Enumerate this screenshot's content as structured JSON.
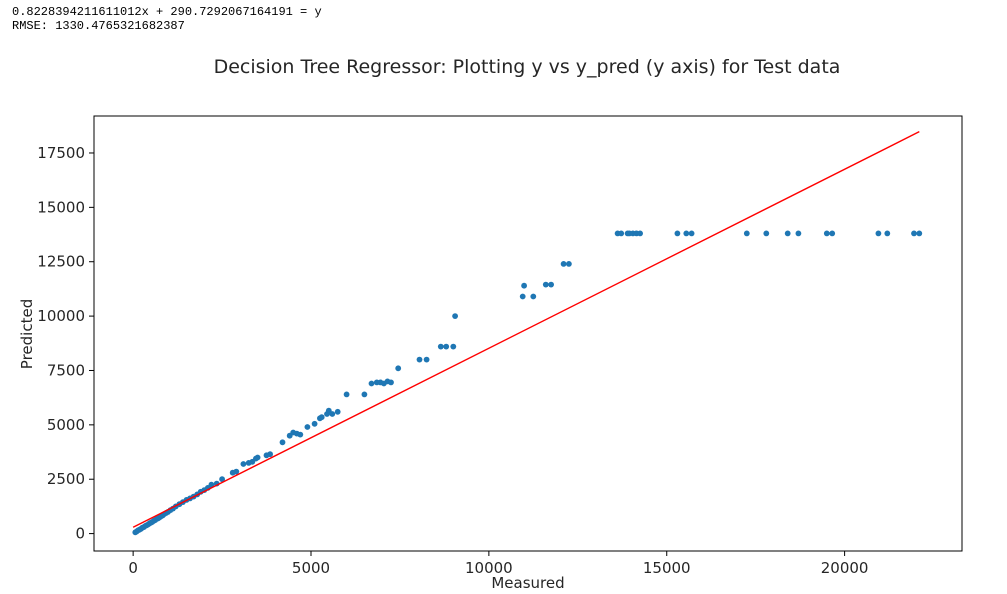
{
  "console": {
    "line1": "0.8228394211611012x + 290.7292067164191 = y",
    "line2": "RMSE: 1330.4765321682387"
  },
  "chart_data": {
    "type": "scatter",
    "title": "Decision Tree Regressor: Plotting y vs y_pred (y axis) for Test data",
    "xlabel": "Measured",
    "ylabel": "Predicted",
    "xlim": [
      -1100,
      23300
    ],
    "ylim": [
      -800,
      19200
    ],
    "xticks": [
      0,
      5000,
      10000,
      15000,
      20000
    ],
    "xtick_labels": [
      "0",
      "5000",
      "10000",
      "15000",
      "20000"
    ],
    "yticks": [
      0,
      2500,
      5000,
      7500,
      10000,
      12500,
      15000,
      17500
    ],
    "ytick_labels": [
      "0",
      "2500",
      "5000",
      "7500",
      "10000",
      "12500",
      "15000",
      "17500"
    ],
    "grid": false,
    "colors": {
      "points": "#1f77b4",
      "line": "#ff0000",
      "axes": "#000000"
    },
    "fit_line": {
      "x": [
        0,
        22100
      ],
      "y": [
        290.7,
        18480
      ]
    },
    "points": {
      "x": [
        60,
        100,
        140,
        180,
        220,
        260,
        300,
        340,
        380,
        420,
        460,
        500,
        540,
        580,
        620,
        660,
        700,
        740,
        780,
        830,
        880,
        930,
        980,
        1050,
        1120,
        1200,
        1300,
        1400,
        1500,
        1600,
        1700,
        1800,
        1900,
        2000,
        2100,
        2200,
        2350,
        2500,
        2800,
        2900,
        3100,
        3250,
        3350,
        3450,
        3500,
        3750,
        3850,
        4200,
        4400,
        4500,
        4600,
        4700,
        4900,
        5100,
        5250,
        5300,
        5450,
        5500,
        5600,
        5750,
        6000,
        6500,
        6700,
        6850,
        6950,
        7050,
        7150,
        7250,
        7450,
        8050,
        8250,
        8650,
        8800,
        9000,
        9050,
        10950,
        10990,
        11250,
        11600,
        11750,
        12100,
        12250,
        13620,
        13720,
        13900,
        13950,
        14050,
        14150,
        14250,
        15300,
        15550,
        15700,
        17250,
        17800,
        18400,
        18700,
        19500,
        19650,
        20950,
        21200,
        21950,
        22100
      ],
      "y": [
        60,
        100,
        150,
        180,
        220,
        270,
        300,
        350,
        380,
        420,
        470,
        500,
        540,
        590,
        620,
        670,
        700,
        740,
        790,
        830,
        900,
        950,
        1000,
        1080,
        1150,
        1250,
        1350,
        1450,
        1550,
        1620,
        1700,
        1800,
        1920,
        2000,
        2100,
        2250,
        2300,
        2500,
        2800,
        2850,
        3200,
        3250,
        3300,
        3450,
        3500,
        3600,
        3650,
        4200,
        4500,
        4650,
        4600,
        4550,
        4900,
        5050,
        5300,
        5350,
        5500,
        5650,
        5500,
        5600,
        6400,
        6400,
        6900,
        6950,
        6950,
        6900,
        7000,
        6950,
        7600,
        8000,
        8000,
        8600,
        8600,
        8600,
        10000,
        10900,
        11400,
        10900,
        11450,
        11450,
        12400,
        12400,
        13800,
        13800,
        13800,
        13800,
        13800,
        13800,
        13800,
        13800,
        13800,
        13800,
        13800,
        13800,
        13800,
        13800,
        13800,
        13800,
        13800,
        13800,
        13800,
        13800
      ]
    }
  }
}
